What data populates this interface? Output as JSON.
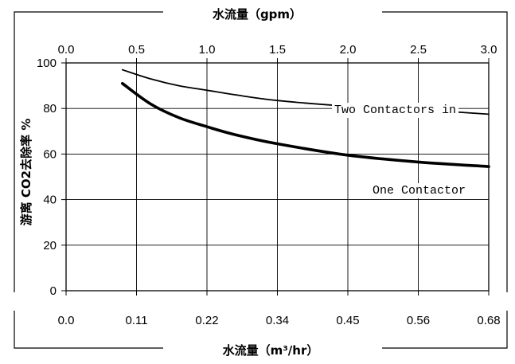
{
  "chart_data": {
    "type": "line",
    "top_axis": {
      "label": "水流量（gpm）",
      "ticks": [
        0.0,
        0.5,
        1.0,
        1.5,
        2.0,
        2.5,
        3.0
      ],
      "tick_labels": [
        "0.0",
        "0.5",
        "1.0",
        "1.5",
        "2.0",
        "2.5",
        "3.0"
      ],
      "range": [
        0,
        3.0
      ]
    },
    "bottom_axis": {
      "label": "水流量（m³/hr）",
      "tick_labels": [
        "0.0",
        "0.11",
        "0.22",
        "0.34",
        "0.45",
        "0.56",
        "0.68"
      ]
    },
    "y_axis": {
      "label": "游离 CO2去除率 %",
      "ticks": [
        0,
        20,
        40,
        60,
        80,
        100
      ],
      "tick_labels": [
        "0",
        "20",
        "40",
        "60",
        "80",
        "100"
      ],
      "range": [
        0,
        100
      ]
    },
    "grid": true,
    "series": [
      {
        "name": "Two Contactors in",
        "x": [
          0.4,
          0.6,
          0.8,
          1.0,
          1.2,
          1.5,
          2.0,
          2.5,
          3.0
        ],
        "y": [
          97,
          93,
          90,
          88,
          86,
          83.5,
          81,
          79.5,
          77.5
        ],
        "color": "#000000"
      },
      {
        "name": "One Contactor",
        "x": [
          0.4,
          0.6,
          0.8,
          1.0,
          1.2,
          1.5,
          2.0,
          2.5,
          3.0
        ],
        "y": [
          91,
          82,
          76,
          72,
          68.5,
          64.5,
          59.5,
          56.5,
          54.5
        ],
        "color": "#000000"
      }
    ]
  }
}
